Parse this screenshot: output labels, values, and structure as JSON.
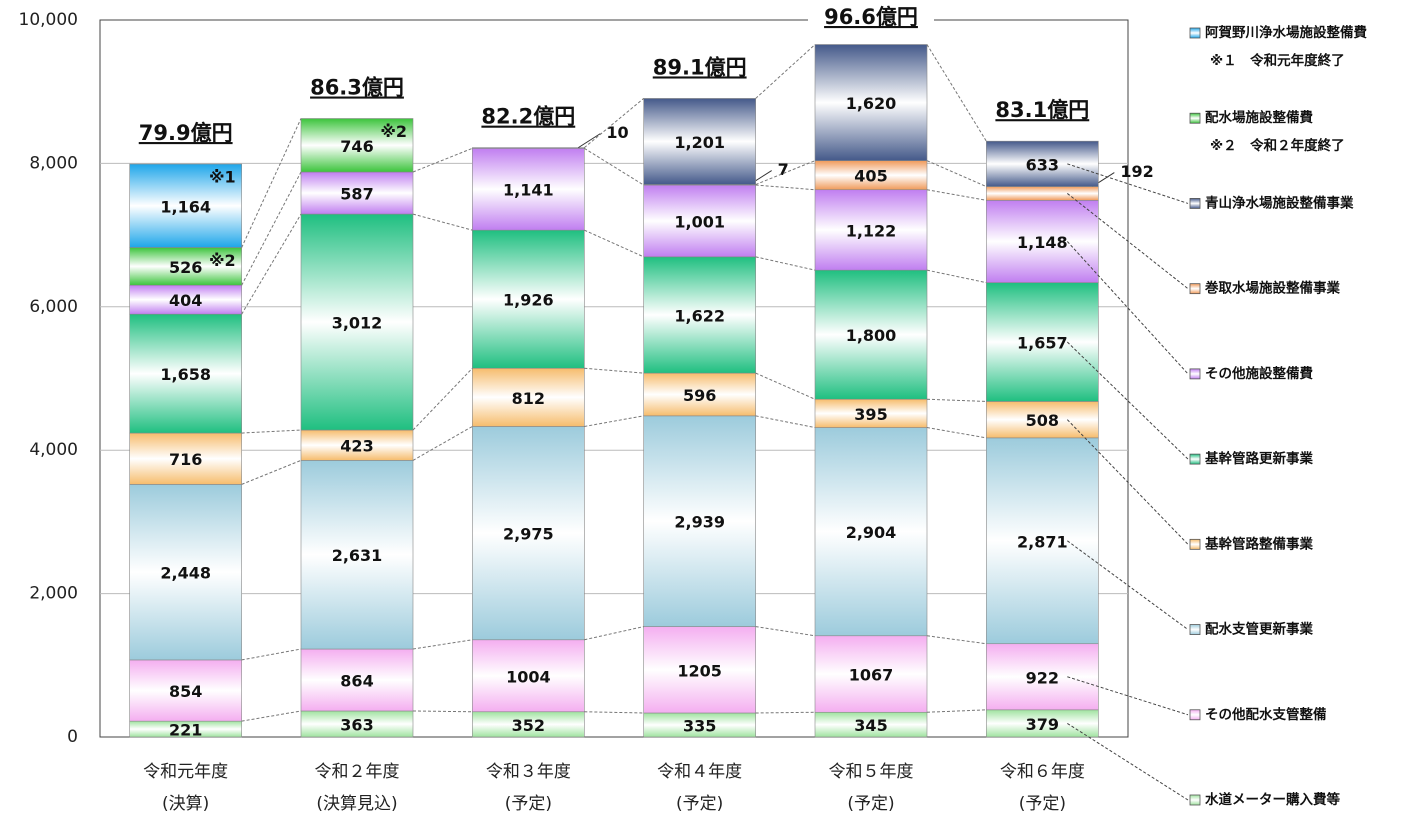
{
  "chart_data": {
    "type": "bar",
    "stacked": true,
    "categories": [
      "令和元年度",
      "令和２年度",
      "令和３年度",
      "令和４年度",
      "令和５年度",
      "令和６年度"
    ],
    "category_notes": [
      "(決算)",
      "(決算見込)",
      "(予定)",
      "(予定)",
      "(予定)",
      "(予定)"
    ],
    "total_labels": [
      "79.9億円",
      "86.3億円",
      "82.2億円",
      "89.1億円",
      "96.6億円",
      "83.1億円"
    ],
    "ylim": [
      0,
      10000
    ],
    "yticks": [
      0,
      {
        "value": 2000,
        "label": "2,000"
      },
      {
        "value": 4000,
        "label": "4,000"
      },
      {
        "value": 6000,
        "label": "6,000"
      },
      {
        "value": 8000,
        "label": "8,000"
      },
      {
        "value": 10000,
        "label": "10,000"
      }
    ],
    "grid": true,
    "legend": "right",
    "series": [
      {
        "name": "水道メーター購入費等",
        "color": "#9fe39f",
        "values": [
          221,
          363,
          352,
          335,
          345,
          379
        ]
      },
      {
        "name": "その他配水支管整備",
        "color": "#f4aef0",
        "values": [
          854,
          864,
          1004,
          1205,
          1067,
          922
        ]
      },
      {
        "name": "配水支管更新事業",
        "color": "#9ccbdc",
        "values": [
          2448,
          2631,
          2975,
          2939,
          2904,
          2871
        ],
        "value_labels": [
          "2,448",
          "2,631",
          "2,975",
          "2,939",
          "2,904",
          "2,871"
        ]
      },
      {
        "name": "基幹管路整備事業",
        "color": "#f6bc6c",
        "values": [
          716,
          423,
          812,
          596,
          395,
          508
        ]
      },
      {
        "name": "基幹管路更新事業",
        "color": "#1fbf80",
        "values": [
          1658,
          3012,
          1926,
          1622,
          1800,
          1657
        ],
        "value_labels": [
          "1,658",
          "3,012",
          "1,926",
          "1,622",
          "1,800",
          "1,657"
        ]
      },
      {
        "name": "その他施設整備費",
        "color": "#c07ef0",
        "values": [
          404,
          587,
          1141,
          1001,
          1122,
          1148
        ],
        "value_labels": [
          "404",
          "587",
          "1,141",
          "1,001",
          "1,122",
          "1,148"
        ]
      },
      {
        "name": "巻取水場施設整備事業",
        "color": "#f09a5a",
        "values": [
          null,
          null,
          null,
          7,
          405,
          192
        ]
      },
      {
        "name": "青山浄水場施設整備事業",
        "color": "#44598a",
        "values": [
          null,
          null,
          10,
          1201,
          1620,
          633
        ],
        "value_labels": [
          null,
          null,
          "10",
          "1,201",
          "1,620",
          "633"
        ]
      },
      {
        "name": "配水場施設整備費",
        "color": "#3cc43c",
        "values": [
          526,
          746,
          null,
          null,
          null,
          null
        ],
        "bar_note": "※2",
        "note": "※２　令和２年度終了"
      },
      {
        "name": "阿賀野川浄水場施設整備費",
        "color": "#1ea6ea",
        "values": [
          1164,
          null,
          null,
          null,
          null,
          null
        ],
        "value_labels": [
          "1,164",
          null,
          null,
          null,
          null,
          null
        ],
        "bar_note": "※1",
        "note": "※１　令和元年度終了"
      }
    ]
  }
}
